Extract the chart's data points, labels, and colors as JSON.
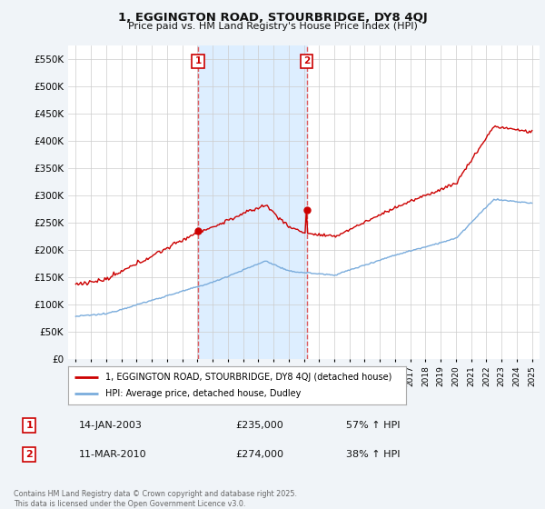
{
  "title": "1, EGGINGTON ROAD, STOURBRIDGE, DY8 4QJ",
  "subtitle": "Price paid vs. HM Land Registry's House Price Index (HPI)",
  "legend_line1": "1, EGGINGTON ROAD, STOURBRIDGE, DY8 4QJ (detached house)",
  "legend_line2": "HPI: Average price, detached house, Dudley",
  "sale1_date": "14-JAN-2003",
  "sale1_price": "£235,000",
  "sale1_hpi": "57% ↑ HPI",
  "sale1_year": 2003.04,
  "sale1_value": 235000,
  "sale2_date": "11-MAR-2010",
  "sale2_price": "£274,000",
  "sale2_hpi": "38% ↑ HPI",
  "sale2_year": 2010.2,
  "sale2_value": 274000,
  "red_color": "#cc0000",
  "blue_color": "#7aacdc",
  "shade_color": "#ddeeff",
  "vline_color": "#dd4444",
  "background_color": "#f0f4f8",
  "plot_bg_color": "#ffffff",
  "ylim": [
    0,
    575000
  ],
  "xlim_start": 1994.5,
  "xlim_end": 2025.5,
  "footer": "Contains HM Land Registry data © Crown copyright and database right 2025.\nThis data is licensed under the Open Government Licence v3.0.",
  "yticks": [
    0,
    50000,
    100000,
    150000,
    200000,
    250000,
    300000,
    350000,
    400000,
    450000,
    500000,
    550000
  ],
  "ytick_labels": [
    "£0",
    "£50K",
    "£100K",
    "£150K",
    "£200K",
    "£250K",
    "£300K",
    "£350K",
    "£400K",
    "£450K",
    "£500K",
    "£550K"
  ]
}
